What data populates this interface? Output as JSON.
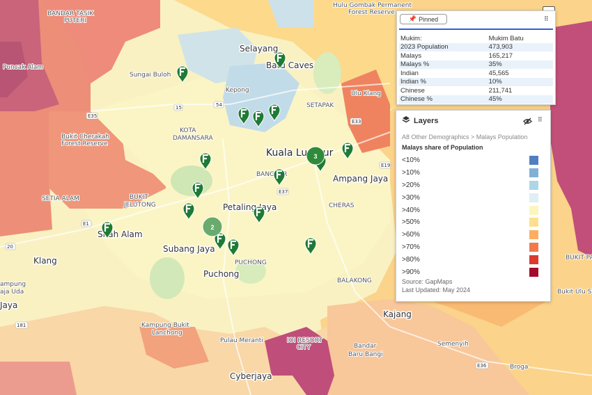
{
  "map": {
    "places": {
      "selayang": "Selayang",
      "batu_caves": "Batu Caves",
      "kepong": "Kepong",
      "setapak": "SETAPAK",
      "sungai_buloh": "Sungai Buloh",
      "kota_damansara_1": "KOTA",
      "kota_damansara_2": "DAMANSARA",
      "kuala_lumpur": "Kuala Lumpur",
      "ampang_jaya": "Ampang Jaya",
      "cheras": "CHERAS",
      "bangsar": "BANGSAR",
      "petaling_jaya": "Petaling Jaya",
      "bukit_jelutong_1": "BUKIT",
      "bukit_jelutong_2": "JELUTONG",
      "setia_alam": "SETIA ALAM",
      "shah_alam": "Shah Alam",
      "subang_jaya": "Subang Jaya",
      "puchong_town": "PUCHONG",
      "puchong": "Puchong",
      "klang": "Klang",
      "kampung_raja_uda_1": "ampung",
      "kampung_raja_uda_2": "aja Uda",
      "jaya": "Jaya",
      "kajang": "Kajang",
      "kampung_bukit_lanchong_1": "Kampung Bukit",
      "kampung_bukit_lanchong_2": "Lanchong",
      "pulau_meranti": "Pulau Meranti",
      "ioi_resort_1": "IOI RESORT",
      "ioi_resort_2": "CITY",
      "bandar_baru_bangi_1": "Bandar",
      "bandar_baru_bangi_2": "Baru Bangi",
      "cyberjaya": "Cyberjaya",
      "semenyih": "Semenyih",
      "broga": "Broga",
      "puncak_alam": "Puncak Alam",
      "bandar_tasik_puteri_1": "BANDAR TASIK",
      "bandar_tasik_puteri_2": "PUTERI",
      "bukit_cherakah_1": "Bukit Cherakah",
      "bukit_cherakah_2": "Forest Reserve",
      "hulu_gombak_1": "Hulu Gombak Permanent",
      "hulu_gombak_2": "Forest Reserve",
      "ulu_klang": "Ulu Klang",
      "balakong": "BALAKONG",
      "bukit_pay": "BUKIT PAY",
      "bukit_ulu_semenyih": "Bukit Ulu Seme",
      "road_e35": "E35",
      "road_54": "54",
      "road_15": "15",
      "road_e33": "E33",
      "road_e19": "E19",
      "road_e37": "E37",
      "road_e1": "E1",
      "road_20": "20",
      "road_181": "181",
      "road_e36": "E36"
    },
    "clusters": [
      "3",
      "2"
    ]
  },
  "info_panel": {
    "pinned_label": "Pinned",
    "rows": [
      {
        "label": "Mukim:",
        "value": "Mukim Batu"
      },
      {
        "label": "2023 Population",
        "value": "473,903"
      },
      {
        "label": "Malays",
        "value": "165,217"
      },
      {
        "label": "Malays %",
        "value": "35%"
      },
      {
        "label": "Indian",
        "value": "45,565"
      },
      {
        "label": "Indian %",
        "value": "10%"
      },
      {
        "label": "Chinese",
        "value": "211,741"
      },
      {
        "label": "Chinese %",
        "value": "45%"
      }
    ]
  },
  "layers_panel": {
    "title": "Layers",
    "breadcrumb": "A8 Other Demographics >  Malays Population",
    "subtitle": "Malays share of Population",
    "legend": [
      {
        "label": "<10%",
        "color": "#4f7fc0"
      },
      {
        "label": ">10%",
        "color": "#7fb1d6"
      },
      {
        "label": ">20%",
        "color": "#acd6e6"
      },
      {
        "label": ">30%",
        "color": "#dfeff4"
      },
      {
        "label": ">40%",
        "color": "#fbf6bd"
      },
      {
        "label": ">50%",
        "color": "#fde08f"
      },
      {
        "label": ">60%",
        "color": "#fbae61"
      },
      {
        "label": ">70%",
        "color": "#f27a4a"
      },
      {
        "label": ">80%",
        "color": "#db3a2e"
      },
      {
        "label": ">90%",
        "color": "#a50b2a"
      }
    ],
    "source": "Source: GapMaps",
    "updated": "Last Updated: May 2024"
  }
}
